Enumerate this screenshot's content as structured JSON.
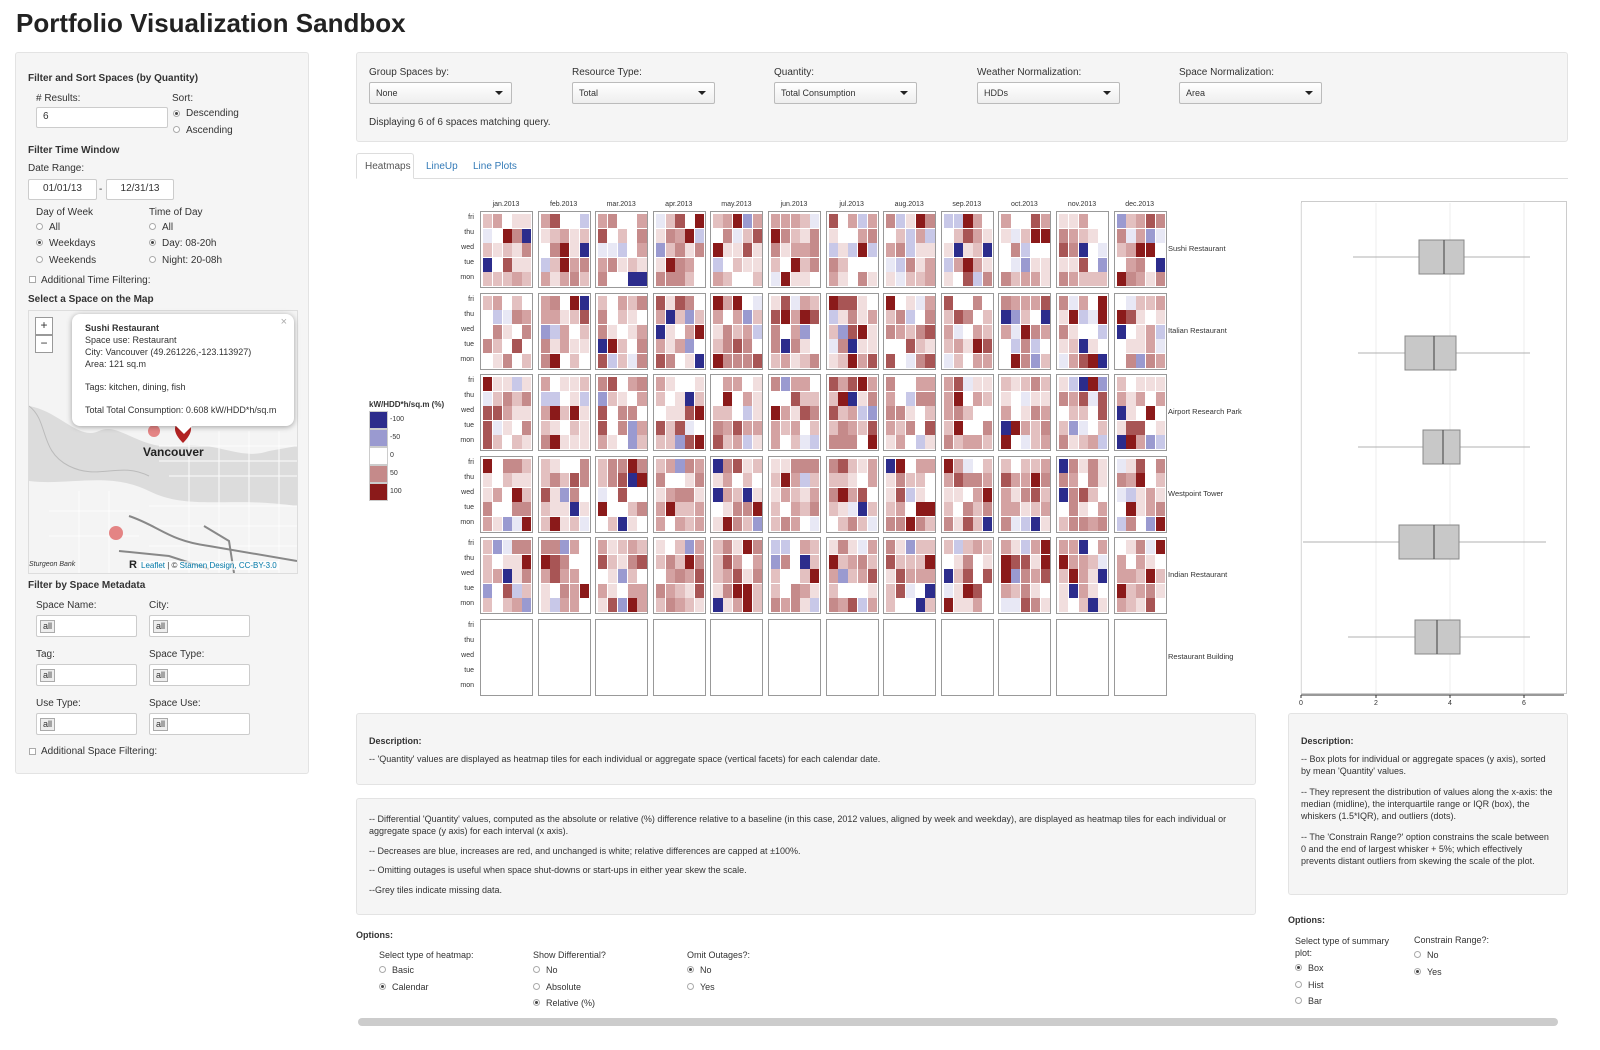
{
  "page_title": "Portfolio Visualization Sandbox",
  "sidebar": {
    "filter_sort_title": "Filter and Sort Spaces (by Quantity)",
    "results_label": "# Results:",
    "results_value": "6",
    "sort_label": "Sort:",
    "sort_options": [
      "Descending",
      "Ascending"
    ],
    "sort_selected": 0,
    "time_window_title": "Filter Time Window",
    "date_range_label": "Date Range:",
    "date_start": "01/01/13",
    "date_sep": "-",
    "date_end": "12/31/13",
    "dow_label": "Day of Week",
    "dow_options": [
      "All",
      "Weekdays",
      "Weekends"
    ],
    "dow_selected": 1,
    "tod_label": "Time of Day",
    "tod_options": [
      "All",
      "Day: 08-20h",
      "Night: 20-08h"
    ],
    "tod_selected": 1,
    "additional_time": "Additional Time Filtering:",
    "map_title": "Select a Space on the Map",
    "metadata_title": "Filter by Space Metadata",
    "fields": [
      {
        "label": "Space Name:",
        "value": "all"
      },
      {
        "label": "City:",
        "value": "all"
      },
      {
        "label": "Tag:",
        "value": "all"
      },
      {
        "label": "Space Type:",
        "value": "all"
      },
      {
        "label": "Use Type:",
        "value": "all"
      },
      {
        "label": "Space Use:",
        "value": "all"
      }
    ],
    "additional_space": "Additional Space Filtering:"
  },
  "map": {
    "zoom_in": "+",
    "zoom_out": "−",
    "city_label": "Vancouver",
    "corner_label": "Sturgeon Bank",
    "corner_label2": "R",
    "attribution_leaflet": "Leaflet",
    "attribution_sep": " | © ",
    "attribution_stamen": "Stamen Design, CC-BY-3.0",
    "popup": {
      "title": "Sushi Restaurant",
      "use": "Space use: Restaurant",
      "city": "City: Vancouver (49.261226,-123.113927)",
      "area": "Area: 121 sq.m",
      "tags": "Tags: kitchen, dining, fish",
      "total": "Total Total Consumption: 0.608 kW/HDD*h/sq.m",
      "close": "×"
    }
  },
  "controls": {
    "group_label": "Group Spaces by:",
    "group_value": "None",
    "resource_label": "Resource Type:",
    "resource_value": "Total",
    "quantity_label": "Quantity:",
    "quantity_value": "Total Consumption",
    "weather_label": "Weather Normalization:",
    "weather_value": "HDDs",
    "space_label": "Space Normalization:",
    "space_value": "Area",
    "status": "Displaying 6 of 6 spaces matching query."
  },
  "tabs": [
    "Heatmaps",
    "LineUp",
    "Line Plots"
  ],
  "heatmap": {
    "legend_title": "kW/HDD*h/sq.m (%)",
    "legend_values": [
      "-100",
      "-50",
      "0",
      "50",
      "100"
    ],
    "legend_colors": [
      "#2c2c8c",
      "#9a9ad0",
      "#ffffff",
      "#c58a8a",
      "#8b1a1a"
    ],
    "months": [
      "jan.2013",
      "feb.2013",
      "mar.2013",
      "apr.2013",
      "may.2013",
      "jun.2013",
      "jul.2013",
      "aug.2013",
      "sep.2013",
      "oct.2013",
      "nov.2013",
      "dec.2013"
    ],
    "days": [
      "fri",
      "thu",
      "wed",
      "tue",
      "mon"
    ],
    "spaces": [
      "Sushi Restaurant",
      "Italian Restaurant",
      "Airport Research Park",
      "Westpoint Tower",
      "Indian Restaurant",
      "Restaurant Building"
    ]
  },
  "boxplot": {
    "x_ticks": [
      "0",
      "2",
      "4",
      "6"
    ]
  },
  "description_main": {
    "title": "Description:",
    "text": "-- 'Quantity' values are displayed as heatmap tiles for each individual or aggregate space (vertical facets) for each calendar date."
  },
  "description_diff": {
    "p1": "-- Differential 'Quantity' values, computed as the absolute or relative (%) difference relative to a baseline (in this case, 2012 values, aligned by week and weekday), are displayed as heatmap tiles for each individual or aggregate space (y axis) for each interval (x axis).",
    "p2": "-- Decreases are blue, increases are red, and unchanged is white; relative differences are capped at ±100%.",
    "p3": "-- Omitting outages is useful when space shut-downs or start-ups in either year skew the scale.",
    "p4": "--Grey tiles indicate missing data."
  },
  "options_main": {
    "title": "Options:",
    "heatmap_label": "Select type of heatmap:",
    "heatmap_options": [
      "Basic",
      "Calendar"
    ],
    "heatmap_selected": 1,
    "diff_label": "Show Differential?",
    "diff_options": [
      "No",
      "Absolute",
      "Relative (%)"
    ],
    "diff_selected": 2,
    "outage_label": "Omit Outages?:",
    "outage_options": [
      "No",
      "Yes"
    ],
    "outage_selected": 0
  },
  "description_right": {
    "title": "Description:",
    "p1": "-- Box plots for individual or aggregate spaces (y axis), sorted by mean 'Quantity' values.",
    "p2": "-- They represent the distribution of values along the x-axis: the median (midline), the interquartile range or IQR (box), the whiskers (1.5*IQR), and outliers (dots).",
    "p3": "-- The 'Constrain Range?' option constrains the scale between 0 and the end of largest whisker + 5%; which effectively prevents distant outliers from skewing the scale of the plot."
  },
  "options_right": {
    "title": "Options:",
    "summary_label": "Select type of summary plot:",
    "summary_options": [
      "Box",
      "Hist",
      "Bar"
    ],
    "summary_selected": 0,
    "constrain_label": "Constrain Range?:",
    "constrain_options": [
      "No",
      "Yes"
    ],
    "constrain_selected": 1
  }
}
